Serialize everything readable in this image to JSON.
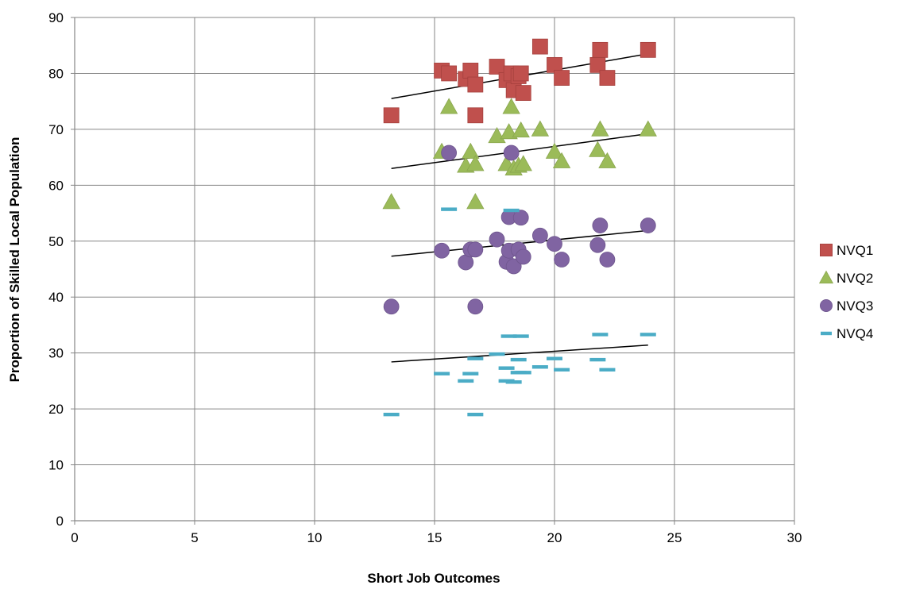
{
  "chart_data": {
    "type": "scatter",
    "title": "",
    "xlabel": "Short Job Outcomes",
    "ylabel": "Proportion of Skilled Local Population",
    "xlim": [
      0,
      30
    ],
    "ylim": [
      0,
      90
    ],
    "xticks": [
      0,
      5,
      10,
      15,
      20,
      25,
      30
    ],
    "yticks": [
      0,
      10,
      20,
      30,
      40,
      50,
      60,
      70,
      80,
      90
    ],
    "grid": true,
    "legend_position": "right",
    "series": [
      {
        "name": "NVQ1",
        "color": "#C0504D",
        "marker": "square",
        "points": [
          [
            13.2,
            72.5
          ],
          [
            15.3,
            80.5
          ],
          [
            15.6,
            80.0
          ],
          [
            16.3,
            79.0
          ],
          [
            16.5,
            80.5
          ],
          [
            16.7,
            78.0
          ],
          [
            16.7,
            72.5
          ],
          [
            17.6,
            81.2
          ],
          [
            18.0,
            78.8
          ],
          [
            18.2,
            80.0
          ],
          [
            18.3,
            77.0
          ],
          [
            18.5,
            79.5
          ],
          [
            18.6,
            80.0
          ],
          [
            18.7,
            76.5
          ],
          [
            19.4,
            84.8
          ],
          [
            20.0,
            81.5
          ],
          [
            20.3,
            79.2
          ],
          [
            21.8,
            81.5
          ],
          [
            21.9,
            84.2
          ],
          [
            22.2,
            79.2
          ],
          [
            23.9,
            84.2
          ]
        ],
        "trend": [
          [
            13.2,
            75.5
          ],
          [
            23.9,
            83.5
          ]
        ]
      },
      {
        "name": "NVQ2",
        "color": "#9BBB59",
        "marker": "triangle",
        "points": [
          [
            13.2,
            57.0
          ],
          [
            15.3,
            66.0
          ],
          [
            15.6,
            74.0
          ],
          [
            16.3,
            63.5
          ],
          [
            16.5,
            66.0
          ],
          [
            16.7,
            63.8
          ],
          [
            16.7,
            57.0
          ],
          [
            17.6,
            68.8
          ],
          [
            18.0,
            63.8
          ],
          [
            18.1,
            69.5
          ],
          [
            18.2,
            74.0
          ],
          [
            18.3,
            63.0
          ],
          [
            18.5,
            63.5
          ],
          [
            18.6,
            69.8
          ],
          [
            18.7,
            63.8
          ],
          [
            19.4,
            70.0
          ],
          [
            20.0,
            66.0
          ],
          [
            20.3,
            64.3
          ],
          [
            21.8,
            66.3
          ],
          [
            21.9,
            70.0
          ],
          [
            22.2,
            64.3
          ],
          [
            23.9,
            70.0
          ]
        ],
        "trend": [
          [
            13.2,
            63.0
          ],
          [
            23.9,
            69.2
          ]
        ]
      },
      {
        "name": "NVQ3",
        "color": "#8064A2",
        "marker": "circle",
        "points": [
          [
            13.2,
            38.3
          ],
          [
            15.3,
            48.3
          ],
          [
            15.6,
            65.8
          ],
          [
            16.3,
            46.2
          ],
          [
            16.5,
            48.5
          ],
          [
            16.7,
            48.5
          ],
          [
            16.7,
            38.3
          ],
          [
            17.6,
            50.3
          ],
          [
            18.0,
            46.3
          ],
          [
            18.1,
            48.3
          ],
          [
            18.1,
            54.3
          ],
          [
            18.2,
            65.8
          ],
          [
            18.3,
            45.5
          ],
          [
            18.5,
            48.5
          ],
          [
            18.6,
            54.2
          ],
          [
            18.7,
            47.2
          ],
          [
            19.4,
            51.0
          ],
          [
            20.0,
            49.5
          ],
          [
            20.3,
            46.7
          ],
          [
            21.8,
            49.3
          ],
          [
            21.9,
            52.8
          ],
          [
            22.2,
            46.7
          ],
          [
            23.9,
            52.8
          ]
        ],
        "trend": [
          [
            13.2,
            47.3
          ],
          [
            23.9,
            51.9
          ]
        ]
      },
      {
        "name": "NVQ4",
        "color": "#4BACC6",
        "marker": "dash",
        "points": [
          [
            13.2,
            19.0
          ],
          [
            15.3,
            26.3
          ],
          [
            15.6,
            55.7
          ],
          [
            16.3,
            25.0
          ],
          [
            16.5,
            26.3
          ],
          [
            16.7,
            29.0
          ],
          [
            16.7,
            19.0
          ],
          [
            17.6,
            29.8
          ],
          [
            18.0,
            27.3
          ],
          [
            18.0,
            25.0
          ],
          [
            18.1,
            33.0
          ],
          [
            18.2,
            55.5
          ],
          [
            18.3,
            24.8
          ],
          [
            18.5,
            26.5
          ],
          [
            18.5,
            28.8
          ],
          [
            18.6,
            33.0
          ],
          [
            18.7,
            26.5
          ],
          [
            19.4,
            27.5
          ],
          [
            20.0,
            29.0
          ],
          [
            20.3,
            27.0
          ],
          [
            21.8,
            28.8
          ],
          [
            21.9,
            33.3
          ],
          [
            22.2,
            27.0
          ],
          [
            23.9,
            33.3
          ]
        ],
        "trend": [
          [
            13.2,
            28.4
          ],
          [
            23.9,
            31.4
          ]
        ]
      }
    ]
  }
}
